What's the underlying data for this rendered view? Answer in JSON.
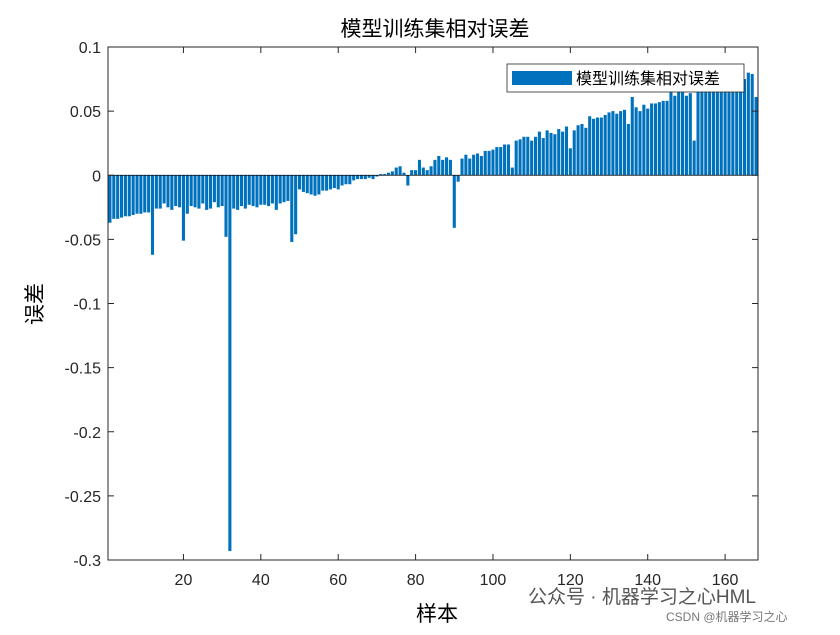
{
  "chart_data": {
    "type": "bar",
    "title": "模型训练集相对误差",
    "xlabel": "样本",
    "ylabel": "误差",
    "x": [
      1,
      2,
      3,
      4,
      5,
      6,
      7,
      8,
      9,
      10,
      11,
      12,
      13,
      14,
      15,
      16,
      17,
      18,
      19,
      20,
      21,
      22,
      23,
      24,
      25,
      26,
      27,
      28,
      29,
      30,
      31,
      32,
      33,
      34,
      35,
      36,
      37,
      38,
      39,
      40,
      41,
      42,
      43,
      44,
      45,
      46,
      47,
      48,
      49,
      50,
      51,
      52,
      53,
      54,
      55,
      56,
      57,
      58,
      59,
      60,
      61,
      62,
      63,
      64,
      65,
      66,
      67,
      68,
      69,
      70,
      71,
      72,
      73,
      74,
      75,
      76,
      77,
      78,
      79,
      80,
      81,
      82,
      83,
      84,
      85,
      86,
      87,
      88,
      89,
      90,
      91,
      92,
      93,
      94,
      95,
      96,
      97,
      98,
      99,
      100,
      101,
      102,
      103,
      104,
      105,
      106,
      107,
      108,
      109,
      110,
      111,
      112,
      113,
      114,
      115,
      116,
      117,
      118,
      119,
      120,
      121,
      122,
      123,
      124,
      125,
      126,
      127,
      128,
      129,
      130,
      131,
      132,
      133,
      134,
      135,
      136,
      137,
      138,
      139,
      140,
      141,
      142,
      143,
      144,
      145,
      146,
      147,
      148,
      149,
      150,
      151,
      152,
      153,
      154,
      155,
      156,
      157,
      158,
      159,
      160,
      161,
      162,
      163,
      164,
      165,
      166,
      167,
      168
    ],
    "series": [
      {
        "name": "模型训练集相对误差",
        "color": "#0072BD",
        "values": [
          -0.037,
          -0.034,
          -0.034,
          -0.033,
          -0.032,
          -0.032,
          -0.031,
          -0.03,
          -0.03,
          -0.029,
          -0.029,
          -0.062,
          -0.026,
          -0.026,
          -0.022,
          -0.025,
          -0.027,
          -0.024,
          -0.025,
          -0.051,
          -0.03,
          -0.024,
          -0.025,
          -0.026,
          -0.022,
          -0.027,
          -0.026,
          -0.021,
          -0.025,
          -0.024,
          -0.048,
          -0.293,
          -0.026,
          -0.027,
          -0.024,
          -0.026,
          -0.023,
          -0.024,
          -0.025,
          -0.023,
          -0.023,
          -0.024,
          -0.022,
          -0.027,
          -0.022,
          -0.021,
          -0.02,
          -0.052,
          -0.046,
          -0.011,
          -0.013,
          -0.014,
          -0.015,
          -0.016,
          -0.015,
          -0.012,
          -0.012,
          -0.011,
          -0.01,
          -0.011,
          -0.008,
          -0.007,
          -0.007,
          -0.004,
          -0.003,
          -0.003,
          -0.003,
          -0.002,
          -0.003,
          -0.001,
          0.001,
          0.001,
          0.002,
          0.003,
          0.006,
          0.007,
          0.002,
          -0.008,
          0.004,
          0.004,
          0.012,
          0.006,
          0.004,
          0.007,
          0.012,
          0.015,
          0.012,
          0.014,
          0.012,
          -0.041,
          -0.005,
          0.013,
          0.016,
          0.013,
          0.016,
          0.017,
          0.015,
          0.019,
          0.019,
          0.02,
          0.022,
          0.022,
          0.024,
          0.024,
          0.006,
          0.027,
          0.028,
          0.03,
          0.03,
          0.027,
          0.03,
          0.034,
          0.029,
          0.035,
          0.033,
          0.032,
          0.036,
          0.034,
          0.038,
          0.021,
          0.035,
          0.039,
          0.04,
          0.037,
          0.046,
          0.044,
          0.045,
          0.045,
          0.047,
          0.049,
          0.05,
          0.048,
          0.05,
          0.051,
          0.04,
          0.061,
          0.053,
          0.05,
          0.055,
          0.052,
          0.056,
          0.056,
          0.057,
          0.058,
          0.058,
          0.065,
          0.062,
          0.065,
          0.066,
          0.062,
          0.064,
          0.027,
          0.068,
          0.068,
          0.069,
          0.068,
          0.071,
          0.07,
          0.073,
          0.073,
          0.072,
          0.074,
          0.076,
          0.07,
          0.075,
          0.08,
          0.079,
          0.061
        ]
      }
    ],
    "xlim": [
      0.5,
      168.5
    ],
    "ylim": [
      -0.3,
      0.1
    ],
    "xticks": [
      20,
      40,
      60,
      80,
      100,
      120,
      140,
      160
    ],
    "yticks": [
      -0.3,
      -0.25,
      -0.2,
      -0.15,
      -0.1,
      -0.05,
      0,
      0.05,
      0.1
    ],
    "legend": "northeast",
    "annotations": [
      "公众号 · 机器学习之心HML",
      "CSDN @机器学习之心"
    ]
  }
}
